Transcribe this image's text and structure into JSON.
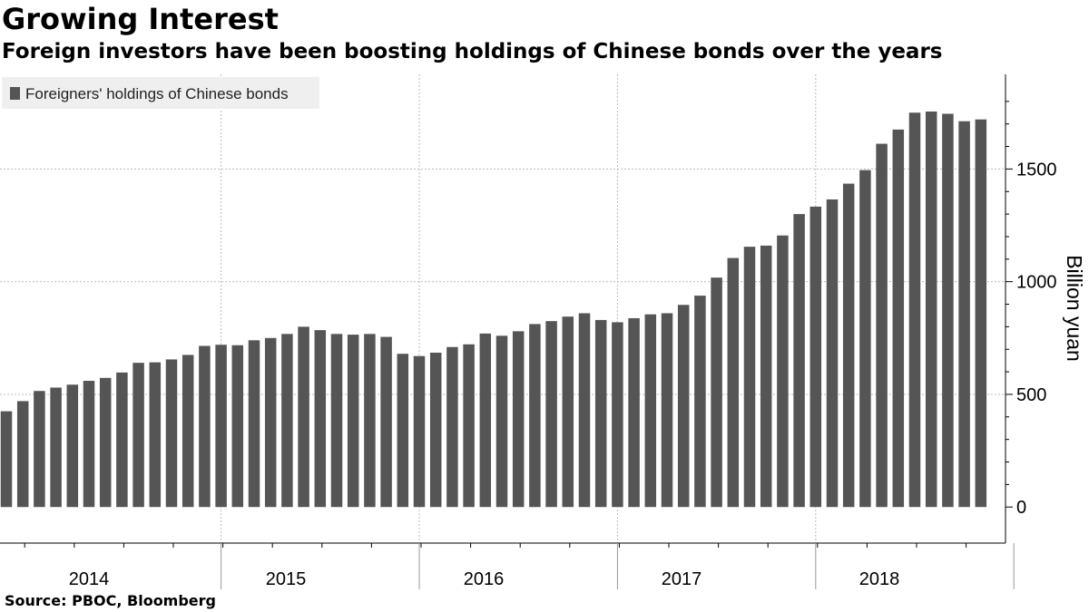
{
  "title": "Growing Interest",
  "subtitle": "Foreign investors have been boosting holdings of Chinese bonds over the years",
  "source": "Source: PBOC, Bloomberg",
  "colors": {
    "bar": "#555555",
    "grid": "#bbbbbb",
    "legend_bg": "#efefef"
  },
  "chart_data": {
    "type": "bar",
    "legend": [
      "Foreigners' holdings of Chinese bonds"
    ],
    "legend_position": "top-left",
    "ylabel": "Billion yuan",
    "yaxis_side": "right",
    "ylim": [
      -160,
      1920
    ],
    "yticks": [
      "0",
      "500",
      "1000",
      "1500"
    ],
    "grid": true,
    "year_labels": [
      "2014",
      "2015",
      "2016",
      "2017",
      "2018"
    ],
    "x_start": "2013-12",
    "x_end": "2018-10",
    "series": [
      {
        "name": "Foreigners' holdings of Chinese bonds",
        "values": [
          425,
          470,
          515,
          530,
          543,
          560,
          573,
          597,
          640,
          642,
          655,
          675,
          715,
          720,
          718,
          740,
          750,
          768,
          800,
          785,
          768,
          765,
          768,
          755,
          680,
          670,
          685,
          710,
          722,
          770,
          760,
          780,
          812,
          825,
          845,
          860,
          830,
          820,
          838,
          855,
          860,
          897,
          938,
          1018,
          1105,
          1155,
          1160,
          1205,
          1300,
          1333,
          1365,
          1435,
          1495,
          1612,
          1675,
          1750,
          1755,
          1745,
          1712,
          1720
        ]
      }
    ]
  }
}
